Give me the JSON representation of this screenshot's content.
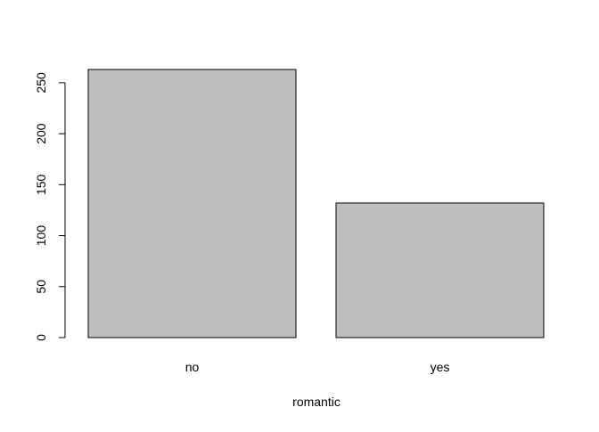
{
  "chart_data": {
    "type": "bar",
    "categories": [
      "no",
      "yes"
    ],
    "values": [
      263,
      132
    ],
    "title": "",
    "xlabel": "romantic",
    "ylabel": "",
    "ylim": [
      0,
      263
    ],
    "yticks": [
      0,
      50,
      100,
      150,
      200,
      250
    ],
    "grid": false,
    "legend": "none",
    "bar_fill": "#bebebe",
    "bar_stroke": "#000000"
  }
}
